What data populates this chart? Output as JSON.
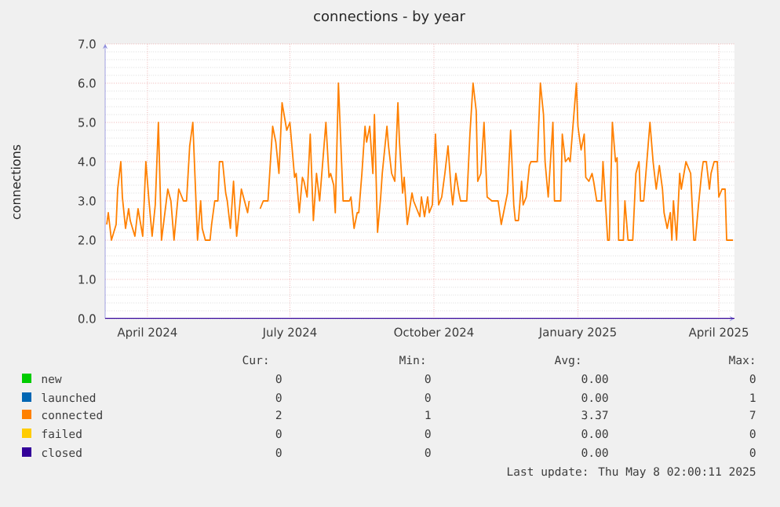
{
  "chart_data": {
    "type": "line",
    "title": "connections - by year",
    "ylabel": "connections",
    "xlim": [
      "2024-03-05",
      "2025-04-11"
    ],
    "xticks": [
      {
        "value": "2024-04-01",
        "label": "April 2024"
      },
      {
        "value": "2024-07-01",
        "label": "July 2024"
      },
      {
        "value": "2024-10-01",
        "label": "October 2024"
      },
      {
        "value": "2025-01-01",
        "label": "January 2025"
      },
      {
        "value": "2025-04-01",
        "label": "April 2025"
      }
    ],
    "ylim": [
      0,
      7
    ],
    "yticks": [
      {
        "value": 0,
        "label": "0.0"
      },
      {
        "value": 1,
        "label": "1.0"
      },
      {
        "value": 2,
        "label": "2.0"
      },
      {
        "value": 3,
        "label": "3.0"
      },
      {
        "value": 4,
        "label": "4.0"
      },
      {
        "value": 5,
        "label": "5.0"
      },
      {
        "value": 6,
        "label": "6.0"
      },
      {
        "value": 7,
        "label": "7.0"
      }
    ],
    "grid": true,
    "legend": "bottom",
    "series": [
      {
        "name": "new",
        "color": "#00cc00"
      },
      {
        "name": "launched",
        "color": "#0066b3"
      },
      {
        "name": "connected",
        "color": "#ff8000",
        "x": [
          "2024-03-06",
          "2024-03-07",
          "2024-03-09",
          "2024-03-12",
          "2024-03-13",
          "2024-03-15",
          "2024-03-16",
          "2024-03-18",
          "2024-03-20",
          "2024-03-21",
          "2024-03-24",
          "2024-03-26",
          "2024-03-29",
          "2024-03-31",
          "2024-04-02",
          "2024-04-04",
          "2024-04-06",
          "2024-04-08",
          "2024-04-10",
          "2024-04-14",
          "2024-04-16",
          "2024-04-18",
          "2024-04-21",
          "2024-04-24",
          "2024-04-26",
          "2024-04-28",
          "2024-04-30",
          "2024-05-01",
          "2024-05-03",
          "2024-05-05",
          "2024-05-06",
          "2024-05-08",
          "2024-05-11",
          "2024-05-12",
          "2024-05-14",
          "2024-05-16",
          "2024-05-17",
          "2024-05-19",
          "2024-05-21",
          "2024-05-22",
          "2024-05-24",
          "2024-05-26",
          "2024-05-28",
          "2024-05-30",
          "2024-05-31",
          "2024-06-02",
          "2024-06-04",
          "2024-06-05",
          "2024-06-08",
          "2024-06-12",
          "2024-06-14",
          "2024-06-17",
          "2024-06-20",
          "2024-06-22",
          "2024-06-24",
          "2024-06-26",
          "2024-06-29",
          "2024-07-01",
          "2024-07-04",
          "2024-07-05",
          "2024-07-07",
          "2024-07-09",
          "2024-07-10",
          "2024-07-12",
          "2024-07-14",
          "2024-07-16",
          "2024-07-18",
          "2024-07-20",
          "2024-07-22",
          "2024-07-24",
          "2024-07-26",
          "2024-07-27",
          "2024-07-29",
          "2024-07-30",
          "2024-08-01",
          "2024-08-03",
          "2024-08-04",
          "2024-08-08",
          "2024-08-09",
          "2024-08-11",
          "2024-08-13",
          "2024-08-14",
          "2024-08-16",
          "2024-08-18",
          "2024-08-19",
          "2024-08-21",
          "2024-08-23",
          "2024-08-24",
          "2024-08-26",
          "2024-08-28",
          "2024-08-29",
          "2024-09-01",
          "2024-09-02",
          "2024-09-04",
          "2024-09-06",
          "2024-09-08",
          "2024-09-09",
          "2024-09-11",
          "2024-09-12",
          "2024-09-14",
          "2024-09-17",
          "2024-09-18",
          "2024-09-20",
          "2024-09-22",
          "2024-09-23",
          "2024-09-25",
          "2024-09-27",
          "2024-09-28",
          "2024-09-30",
          "2024-10-02",
          "2024-10-04",
          "2024-10-06",
          "2024-10-08",
          "2024-10-10",
          "2024-10-12",
          "2024-10-13",
          "2024-10-15",
          "2024-10-17",
          "2024-10-18",
          "2024-10-22",
          "2024-10-24",
          "2024-10-26",
          "2024-10-28",
          "2024-10-29",
          "2024-10-31",
          "2024-11-02",
          "2024-11-04",
          "2024-11-07",
          "2024-11-11",
          "2024-11-13",
          "2024-11-15",
          "2024-11-17",
          "2024-11-19",
          "2024-11-21",
          "2024-11-22",
          "2024-11-24",
          "2024-11-26",
          "2024-11-27",
          "2024-11-29",
          "2024-12-01",
          "2024-12-02",
          "2024-12-04",
          "2024-12-06",
          "2024-12-08",
          "2024-12-10",
          "2024-12-11",
          "2024-12-13",
          "2024-12-16",
          "2024-12-17",
          "2024-12-21",
          "2024-12-22",
          "2024-12-24",
          "2024-12-26",
          "2024-12-27",
          "2024-12-29",
          "2024-12-31",
          "2025-01-01",
          "2025-01-03",
          "2025-01-05",
          "2025-01-06",
          "2025-01-08",
          "2025-01-10",
          "2025-01-11",
          "2025-01-13",
          "2025-01-16",
          "2025-01-17",
          "2025-01-20",
          "2025-01-21",
          "2025-01-23",
          "2025-01-25",
          "2025-01-26",
          "2025-01-27",
          "2025-01-30",
          "2025-01-31",
          "2025-02-02",
          "2025-02-05",
          "2025-02-07",
          "2025-02-09",
          "2025-02-10",
          "2025-02-12",
          "2025-02-14",
          "2025-02-16",
          "2025-02-18",
          "2025-02-20",
          "2025-02-22",
          "2025-02-24",
          "2025-02-25",
          "2025-02-27",
          "2025-03-01",
          "2025-03-02",
          "2025-03-03",
          "2025-03-05",
          "2025-03-07",
          "2025-03-08",
          "2025-03-11",
          "2025-03-12",
          "2025-03-14",
          "2025-03-16",
          "2025-03-17",
          "2025-03-19",
          "2025-03-21",
          "2025-03-22",
          "2025-03-24",
          "2025-03-26",
          "2025-03-27",
          "2025-03-29",
          "2025-03-31",
          "2025-04-01",
          "2025-04-03",
          "2025-04-05",
          "2025-04-06",
          "2025-04-10"
        ],
        "values": [
          2.4,
          2.7,
          2.0,
          2.4,
          3.3,
          4.0,
          3.1,
          2.3,
          2.8,
          2.5,
          2.1,
          2.8,
          2.1,
          4.0,
          3.0,
          2.1,
          2.9,
          5.0,
          2.0,
          3.3,
          3.0,
          2.0,
          3.3,
          3.0,
          3.0,
          4.4,
          5.0,
          4.0,
          2.0,
          3.0,
          2.3,
          2.0,
          2.0,
          2.4,
          3.0,
          3.0,
          4.0,
          4.0,
          3.2,
          3.0,
          2.3,
          3.5,
          2.1,
          2.9,
          3.3,
          3.0,
          2.7,
          3.0,
          null,
          2.8,
          3.0,
          3.0,
          4.9,
          4.5,
          3.7,
          5.5,
          4.8,
          5.0,
          3.6,
          3.7,
          2.7,
          3.6,
          3.5,
          3.1,
          4.7,
          2.5,
          3.7,
          3.0,
          4.0,
          5.0,
          3.6,
          3.7,
          3.4,
          2.7,
          6.0,
          4.0,
          3.0,
          3.0,
          3.1,
          2.3,
          2.7,
          2.7,
          3.7,
          4.9,
          4.5,
          4.9,
          3.7,
          5.2,
          2.2,
          3.1,
          3.7,
          4.9,
          4.4,
          3.7,
          3.5,
          5.5,
          4.5,
          3.2,
          3.6,
          2.4,
          3.2,
          3.0,
          2.8,
          2.6,
          3.1,
          2.6,
          3.1,
          2.7,
          2.9,
          4.7,
          2.9,
          3.1,
          3.7,
          4.4,
          3.3,
          2.9,
          3.7,
          3.2,
          3.0,
          3.0,
          4.7,
          6.0,
          5.3,
          3.5,
          3.7,
          5.0,
          3.1,
          3.0,
          3.0,
          2.4,
          2.8,
          3.2,
          4.8,
          2.9,
          2.5,
          2.5,
          3.5,
          2.9,
          3.1,
          3.9,
          4.0,
          4.0,
          4.0,
          6.0,
          5.2,
          4.0,
          3.1,
          5.0,
          3.0,
          3.0,
          4.7,
          4.0,
          4.1,
          4.0,
          5.0,
          6.0,
          4.9,
          4.3,
          4.7,
          3.6,
          3.5,
          3.7,
          3.5,
          3.0,
          3.0,
          4.0,
          2.0,
          2.0,
          5.0,
          4.0,
          4.1,
          2.0,
          2.0,
          3.0,
          2.0,
          2.0,
          3.7,
          4.0,
          3.0,
          3.0,
          4.0,
          5.0,
          4.0,
          3.3,
          3.9,
          3.3,
          2.7,
          2.3,
          2.7,
          2.0,
          3.0,
          2.0,
          3.7,
          3.3,
          4.0,
          3.9,
          3.7,
          2.0,
          2.0,
          2.9,
          3.7,
          4.0,
          4.0,
          3.3,
          3.7,
          4.0,
          4.0,
          3.1,
          3.3,
          3.3,
          2.0,
          2.0
        ]
      },
      {
        "name": "failed",
        "color": "#ffcc00"
      },
      {
        "name": "closed",
        "color": "#330099",
        "x": [
          "2024-03-05",
          "2025-04-11"
        ],
        "values": [
          0,
          0
        ]
      }
    ],
    "annotations": [
      "Cur:",
      "Min:",
      "Avg:",
      "Max:",
      "0",
      "0",
      "0.00",
      "0",
      "0",
      "0",
      "0.00",
      "1",
      "2",
      "1",
      "3.37",
      "7",
      "0",
      "0",
      "0.00",
      "0",
      "0",
      "0",
      "0.00",
      "0",
      "Last update: Thu May  8 02:00:11 2025"
    ]
  }
}
